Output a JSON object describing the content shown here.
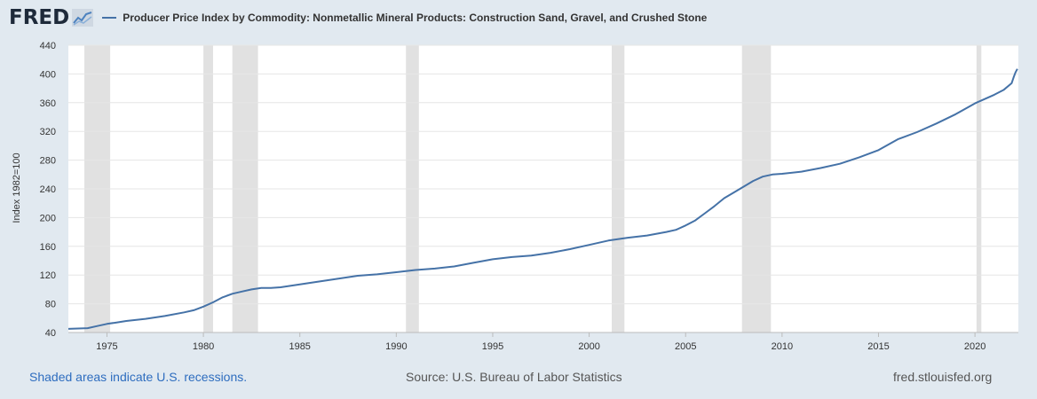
{
  "header": {
    "logo_text": "FRED",
    "logo_icon": "fred-graph-icon"
  },
  "footer": {
    "recession_note": "Shaded areas indicate U.S. recessions.",
    "source": "Source: U.S. Bureau of Labor Statistics",
    "site": "fred.stlouisfed.org"
  },
  "colors": {
    "background": "#e1e9f0",
    "plot_bg": "#ffffff",
    "series": "#4572a7",
    "recession": "#e1e1e1",
    "grid": "#e6e6e6"
  },
  "chart_data": {
    "type": "line",
    "title": "",
    "ylabel": "Index 1982=100",
    "xlabel": "",
    "legend_position": "top-left",
    "grid": true,
    "xlim": [
      1973.0,
      2022.25
    ],
    "ylim": [
      40,
      440
    ],
    "yticks": [
      40,
      80,
      120,
      160,
      200,
      240,
      280,
      320,
      360,
      400,
      440
    ],
    "xticks": [
      1975,
      1980,
      1985,
      1990,
      1995,
      2000,
      2005,
      2010,
      2015,
      2020
    ],
    "recessions": [
      [
        1973.83,
        1975.17
      ],
      [
        1980.0,
        1980.5
      ],
      [
        1981.5,
        1982.83
      ],
      [
        1990.5,
        1991.17
      ],
      [
        2001.17,
        2001.83
      ],
      [
        2007.92,
        2009.42
      ],
      [
        2020.08,
        2020.33
      ]
    ],
    "series": [
      {
        "name": "Producer Price Index by Commodity: Nonmetallic Mineral Products: Construction Sand, Gravel, and Crushed Stone",
        "x": [
          1973.0,
          1973.5,
          1974.0,
          1974.5,
          1975.0,
          1975.5,
          1976.0,
          1977.0,
          1978.0,
          1979.0,
          1979.5,
          1980.0,
          1980.5,
          1981.0,
          1981.5,
          1982.0,
          1982.5,
          1983.0,
          1983.5,
          1984.0,
          1985.0,
          1986.0,
          1987.0,
          1988.0,
          1989.0,
          1990.0,
          1991.0,
          1992.0,
          1993.0,
          1994.0,
          1995.0,
          1996.0,
          1997.0,
          1998.0,
          1999.0,
          2000.0,
          2001.0,
          2002.0,
          2003.0,
          2004.0,
          2004.5,
          2005.0,
          2005.5,
          2006.0,
          2006.5,
          2007.0,
          2007.5,
          2008.0,
          2008.5,
          2009.0,
          2009.5,
          2010.0,
          2011.0,
          2012.0,
          2013.0,
          2014.0,
          2015.0,
          2016.0,
          2017.0,
          2018.0,
          2019.0,
          2020.0,
          2021.0,
          2021.5,
          2021.9,
          2022.0,
          2022.1,
          2022.2
        ],
        "y": [
          45,
          45.5,
          46,
          49,
          52,
          54,
          56,
          59,
          63,
          68,
          71,
          76,
          82,
          89,
          94,
          97,
          100,
          102,
          102,
          103,
          107,
          111,
          115,
          119,
          121,
          124,
          127,
          129,
          132,
          137,
          142,
          145,
          147,
          151,
          156,
          162,
          168,
          172,
          175,
          180,
          183,
          189,
          196,
          206,
          216,
          227,
          235,
          243,
          251,
          257,
          260,
          261,
          264,
          269,
          275,
          284,
          294,
          309,
          319,
          331,
          344,
          359,
          371,
          378,
          387,
          395,
          402,
          407
        ]
      }
    ]
  }
}
